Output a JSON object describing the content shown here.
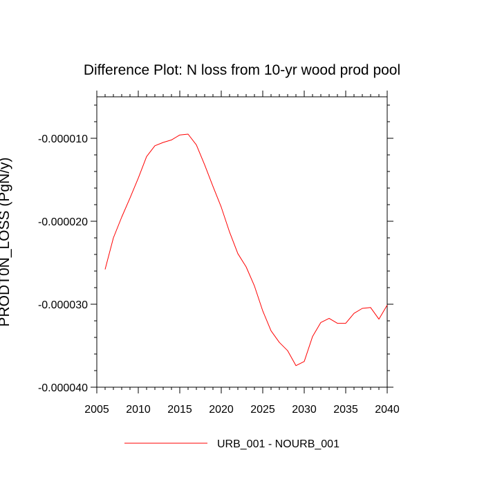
{
  "chart_data": {
    "type": "line",
    "title": "Difference Plot: N loss from 10-yr wood prod pool",
    "xlabel": "",
    "ylabel": "PRODT0N_LOSS  (PgN/y)",
    "xlim": [
      2005,
      2040
    ],
    "ylim": [
      -4e-05,
      -5e-06
    ],
    "x_ticks": [
      2005,
      2010,
      2015,
      2020,
      2025,
      2030,
      2035,
      2040
    ],
    "x_tick_labels": [
      "2005",
      "2010",
      "2015",
      "2020",
      "2025",
      "2030",
      "2035",
      "2040"
    ],
    "y_ticks": [
      -1e-05,
      -2e-05,
      -3e-05,
      -4e-05
    ],
    "y_tick_labels": [
      "-0.000010",
      "-0.000020",
      "-0.000030",
      "-0.000040"
    ],
    "grid": false,
    "legend_position": "bottom",
    "series": [
      {
        "name": "URB_001 - NOURB_001",
        "color": "#ff0000",
        "x": [
          2006,
          2007,
          2008,
          2009,
          2010,
          2011,
          2012,
          2013,
          2014,
          2015,
          2016,
          2017,
          2018,
          2019,
          2020,
          2021,
          2022,
          2023,
          2024,
          2025,
          2026,
          2027,
          2028,
          2029,
          2030,
          2031,
          2032,
          2033,
          2034,
          2035,
          2036,
          2037,
          2038,
          2039,
          2040
        ],
        "y": [
          -2.58e-05,
          -2.2e-05,
          -1.95e-05,
          -1.72e-05,
          -1.48e-05,
          -1.22e-05,
          -1.09e-05,
          -1.05e-05,
          -1.02e-05,
          -9.6e-06,
          -9.5e-06,
          -1.08e-05,
          -1.32e-05,
          -1.58e-05,
          -1.83e-05,
          -2.13e-05,
          -2.39e-05,
          -2.55e-05,
          -2.78e-05,
          -3.08e-05,
          -3.32e-05,
          -3.46e-05,
          -3.56e-05,
          -3.74e-05,
          -3.69e-05,
          -3.39e-05,
          -3.22e-05,
          -3.17e-05,
          -3.23e-05,
          -3.23e-05,
          -3.11e-05,
          -3.05e-05,
          -3.04e-05,
          -3.18e-05,
          -3.01e-05
        ]
      }
    ]
  }
}
